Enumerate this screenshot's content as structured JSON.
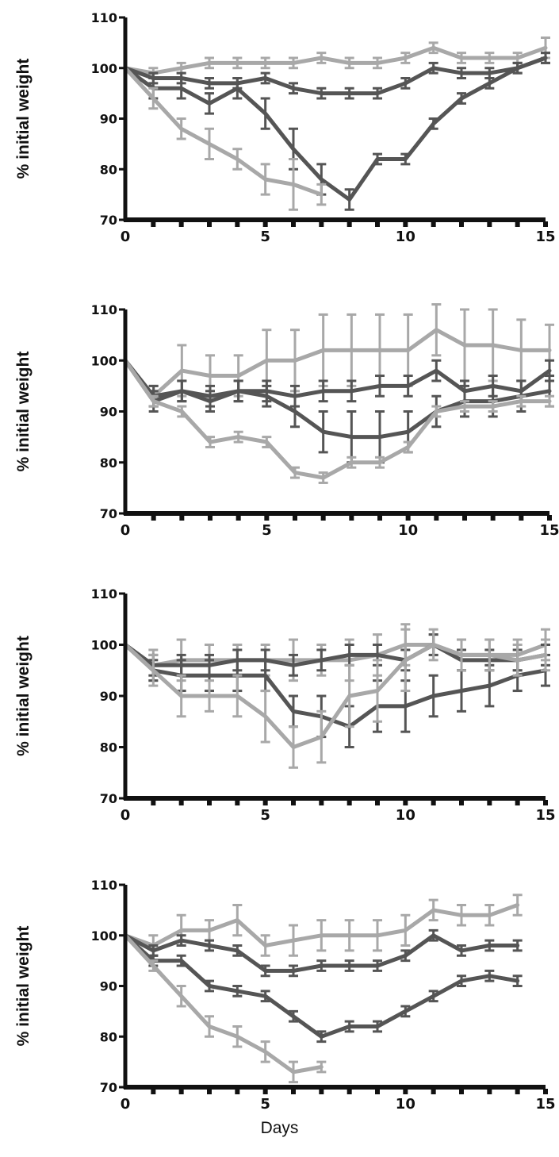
{
  "figure": {
    "xlabel": "Days"
  },
  "colors": {
    "axis": "#111111",
    "light": "#a8a8a8",
    "dark": "#555555"
  },
  "chart_data": [
    {
      "type": "line",
      "ylabel": "% initial weight",
      "xlim": [
        0,
        15
      ],
      "ylim": [
        70,
        110
      ],
      "xticks": [
        0,
        5,
        10,
        15
      ],
      "yticks": [
        70,
        80,
        90,
        100,
        110
      ],
      "series": [
        {
          "color": "light",
          "x": [
            0,
            1,
            2,
            3,
            4,
            5,
            6,
            7,
            8,
            9,
            10,
            11,
            12,
            13,
            14,
            15
          ],
          "y": [
            100,
            99,
            100,
            101,
            101,
            101,
            101,
            102,
            101,
            101,
            102,
            104,
            102,
            102,
            102,
            104
          ],
          "err": [
            0,
            1,
            1,
            1,
            1,
            1,
            1,
            1,
            1,
            1,
            1,
            1,
            1,
            1,
            1,
            2
          ]
        },
        {
          "color": "dark",
          "x": [
            0,
            1,
            2,
            3,
            4,
            5,
            6,
            7,
            8,
            9,
            10,
            11,
            12,
            13,
            14,
            15
          ],
          "y": [
            100,
            98,
            98,
            97,
            97,
            98,
            96,
            95,
            95,
            95,
            97,
            100,
            99,
            99,
            100,
            102
          ],
          "err": [
            0,
            1,
            1,
            1,
            1,
            1,
            1,
            1,
            1,
            1,
            1,
            1,
            1,
            1,
            1,
            1
          ]
        },
        {
          "color": "dark",
          "x": [
            0,
            1,
            2,
            3,
            4,
            5,
            6,
            7,
            8,
            9,
            10,
            11,
            12,
            13,
            14,
            15
          ],
          "y": [
            100,
            96,
            96,
            93,
            96,
            91,
            84,
            78,
            74,
            82,
            82,
            89,
            94,
            97,
            100,
            102
          ],
          "err": [
            0,
            2,
            2,
            2,
            2,
            3,
            4,
            3,
            2,
            1,
            1,
            1,
            1,
            1,
            1,
            1
          ]
        },
        {
          "color": "light",
          "x": [
            0,
            1,
            2,
            3,
            4,
            5,
            6,
            7
          ],
          "y": [
            100,
            94,
            88,
            85,
            82,
            78,
            77,
            75
          ],
          "err": [
            0,
            2,
            2,
            3,
            2,
            3,
            5,
            2
          ]
        }
      ]
    },
    {
      "type": "line",
      "ylabel": "% initial weight",
      "xlim": [
        0,
        15
      ],
      "ylim": [
        70,
        110
      ],
      "xticks": [
        0,
        5,
        10,
        15
      ],
      "yticks": [
        70,
        80,
        90,
        100,
        110
      ],
      "series": [
        {
          "color": "light",
          "x": [
            0,
            1,
            2,
            3,
            4,
            5,
            6,
            7,
            8,
            9,
            10,
            11,
            12,
            13,
            14,
            15
          ],
          "y": [
            100,
            93,
            98,
            97,
            97,
            100,
            100,
            102,
            102,
            102,
            102,
            106,
            103,
            103,
            102,
            102
          ],
          "err": [
            0,
            2,
            5,
            4,
            4,
            6,
            6,
            7,
            7,
            7,
            7,
            5,
            7,
            7,
            6,
            5
          ]
        },
        {
          "color": "dark",
          "x": [
            0,
            1,
            2,
            3,
            4,
            5,
            6,
            7,
            8,
            9,
            10,
            11,
            12,
            13,
            14,
            15
          ],
          "y": [
            100,
            93,
            94,
            92,
            94,
            94,
            93,
            94,
            94,
            95,
            95,
            98,
            94,
            95,
            94,
            98
          ],
          "err": [
            0,
            2,
            2,
            2,
            2,
            2,
            2,
            2,
            2,
            2,
            2,
            2,
            2,
            2,
            2,
            2
          ]
        },
        {
          "color": "dark",
          "x": [
            0,
            1,
            2,
            3,
            4,
            5,
            6,
            7,
            8,
            9,
            10,
            11,
            12,
            13,
            14,
            15
          ],
          "y": [
            100,
            92,
            94,
            93,
            94,
            93,
            90,
            86,
            85,
            85,
            86,
            90,
            92,
            92,
            93,
            94
          ],
          "err": [
            0,
            2,
            2,
            2,
            2,
            2,
            3,
            4,
            5,
            5,
            4,
            3,
            3,
            3,
            3,
            3
          ]
        },
        {
          "color": "light",
          "x": [
            0,
            1,
            2,
            3,
            4,
            5,
            6,
            7,
            8,
            9,
            10,
            11,
            12,
            13,
            14,
            15
          ],
          "y": [
            100,
            92,
            90,
            84,
            85,
            84,
            78,
            77,
            80,
            80,
            83,
            90,
            91,
            91,
            92,
            92
          ],
          "err": [
            0,
            1,
            1,
            1,
            1,
            1,
            1,
            1,
            1,
            1,
            1,
            1,
            1,
            1,
            1,
            1
          ]
        }
      ]
    },
    {
      "type": "line",
      "ylabel": "% initial weight",
      "xlim": [
        0,
        15
      ],
      "ylim": [
        70,
        110
      ],
      "xticks": [
        0,
        5,
        10,
        15
      ],
      "yticks": [
        70,
        80,
        90,
        100,
        110
      ],
      "series": [
        {
          "color": "light",
          "x": [
            0,
            1,
            2,
            3,
            4,
            5,
            6,
            7,
            8,
            9,
            10,
            11,
            12,
            13,
            14,
            15
          ],
          "y": [
            100,
            96,
            97,
            97,
            97,
            97,
            97,
            97,
            97,
            98,
            100,
            100,
            98,
            98,
            98,
            100
          ],
          "err": [
            0,
            3,
            4,
            3,
            3,
            3,
            4,
            3,
            4,
            4,
            4,
            2,
            3,
            3,
            3,
            3
          ]
        },
        {
          "color": "dark",
          "x": [
            0,
            1,
            2,
            3,
            4,
            5,
            6,
            7,
            8,
            9,
            10,
            11,
            12,
            13,
            14,
            15
          ],
          "y": [
            100,
            96,
            96,
            96,
            97,
            97,
            96,
            97,
            98,
            98,
            97,
            100,
            97,
            97,
            97,
            98
          ],
          "err": [
            0,
            2,
            2,
            2,
            2,
            2,
            2,
            2,
            2,
            2,
            2,
            2,
            2,
            2,
            2,
            2
          ]
        },
        {
          "color": "dark",
          "x": [
            0,
            1,
            2,
            3,
            4,
            5,
            6,
            7,
            8,
            9,
            10,
            11,
            12,
            13,
            14,
            15
          ],
          "y": [
            100,
            95,
            94,
            94,
            94,
            94,
            87,
            86,
            84,
            88,
            88,
            90,
            91,
            92,
            94,
            95
          ],
          "err": [
            0,
            2,
            3,
            3,
            3,
            3,
            3,
            4,
            4,
            5,
            5,
            4,
            4,
            4,
            3,
            3
          ]
        },
        {
          "color": "light",
          "x": [
            0,
            1,
            2,
            3,
            4,
            5,
            6,
            7,
            8,
            9,
            10,
            11,
            12,
            13,
            14,
            15
          ],
          "y": [
            100,
            95,
            90,
            90,
            90,
            86,
            80,
            82,
            90,
            91,
            97,
            100,
            98,
            98,
            97,
            98
          ],
          "err": [
            0,
            3,
            4,
            3,
            4,
            5,
            4,
            5,
            6,
            6,
            6,
            3,
            3,
            3,
            3,
            3
          ]
        }
      ]
    },
    {
      "type": "line",
      "ylabel": "% initial weight",
      "xlim": [
        0,
        15
      ],
      "ylim": [
        70,
        110
      ],
      "xticks": [
        0,
        5,
        10,
        15
      ],
      "yticks": [
        70,
        80,
        90,
        100,
        110
      ],
      "series": [
        {
          "color": "light",
          "x": [
            0,
            1,
            2,
            3,
            4,
            5,
            6,
            7,
            8,
            9,
            10,
            11,
            12,
            13,
            14
          ],
          "y": [
            100,
            98,
            101,
            101,
            103,
            98,
            99,
            100,
            100,
            100,
            101,
            105,
            104,
            104,
            106
          ],
          "err": [
            0,
            2,
            3,
            2,
            3,
            2,
            3,
            3,
            3,
            3,
            3,
            2,
            2,
            2,
            2
          ]
        },
        {
          "color": "dark",
          "x": [
            0,
            1,
            2,
            3,
            4,
            5,
            6,
            7,
            8,
            9,
            10,
            11,
            12,
            13,
            14
          ],
          "y": [
            100,
            97,
            99,
            98,
            97,
            93,
            93,
            94,
            94,
            94,
            96,
            100,
            97,
            98,
            98
          ],
          "err": [
            0,
            1,
            1,
            1,
            1,
            1,
            1,
            1,
            1,
            1,
            1,
            1,
            1,
            1,
            1
          ]
        },
        {
          "color": "dark",
          "x": [
            0,
            1,
            2,
            3,
            4,
            5,
            6,
            7,
            8,
            9,
            10,
            11,
            12,
            13,
            14
          ],
          "y": [
            100,
            95,
            95,
            90,
            89,
            88,
            84,
            80,
            82,
            82,
            85,
            88,
            91,
            92,
            91
          ],
          "err": [
            0,
            1,
            1,
            1,
            1,
            1,
            1,
            1,
            1,
            1,
            1,
            1,
            1,
            1,
            1
          ]
        },
        {
          "color": "light",
          "x": [
            0,
            1,
            2,
            3,
            4,
            5,
            6,
            7
          ],
          "y": [
            100,
            94,
            88,
            82,
            80,
            77,
            73,
            74
          ],
          "err": [
            0,
            1,
            2,
            2,
            2,
            2,
            2,
            1
          ]
        }
      ]
    }
  ]
}
